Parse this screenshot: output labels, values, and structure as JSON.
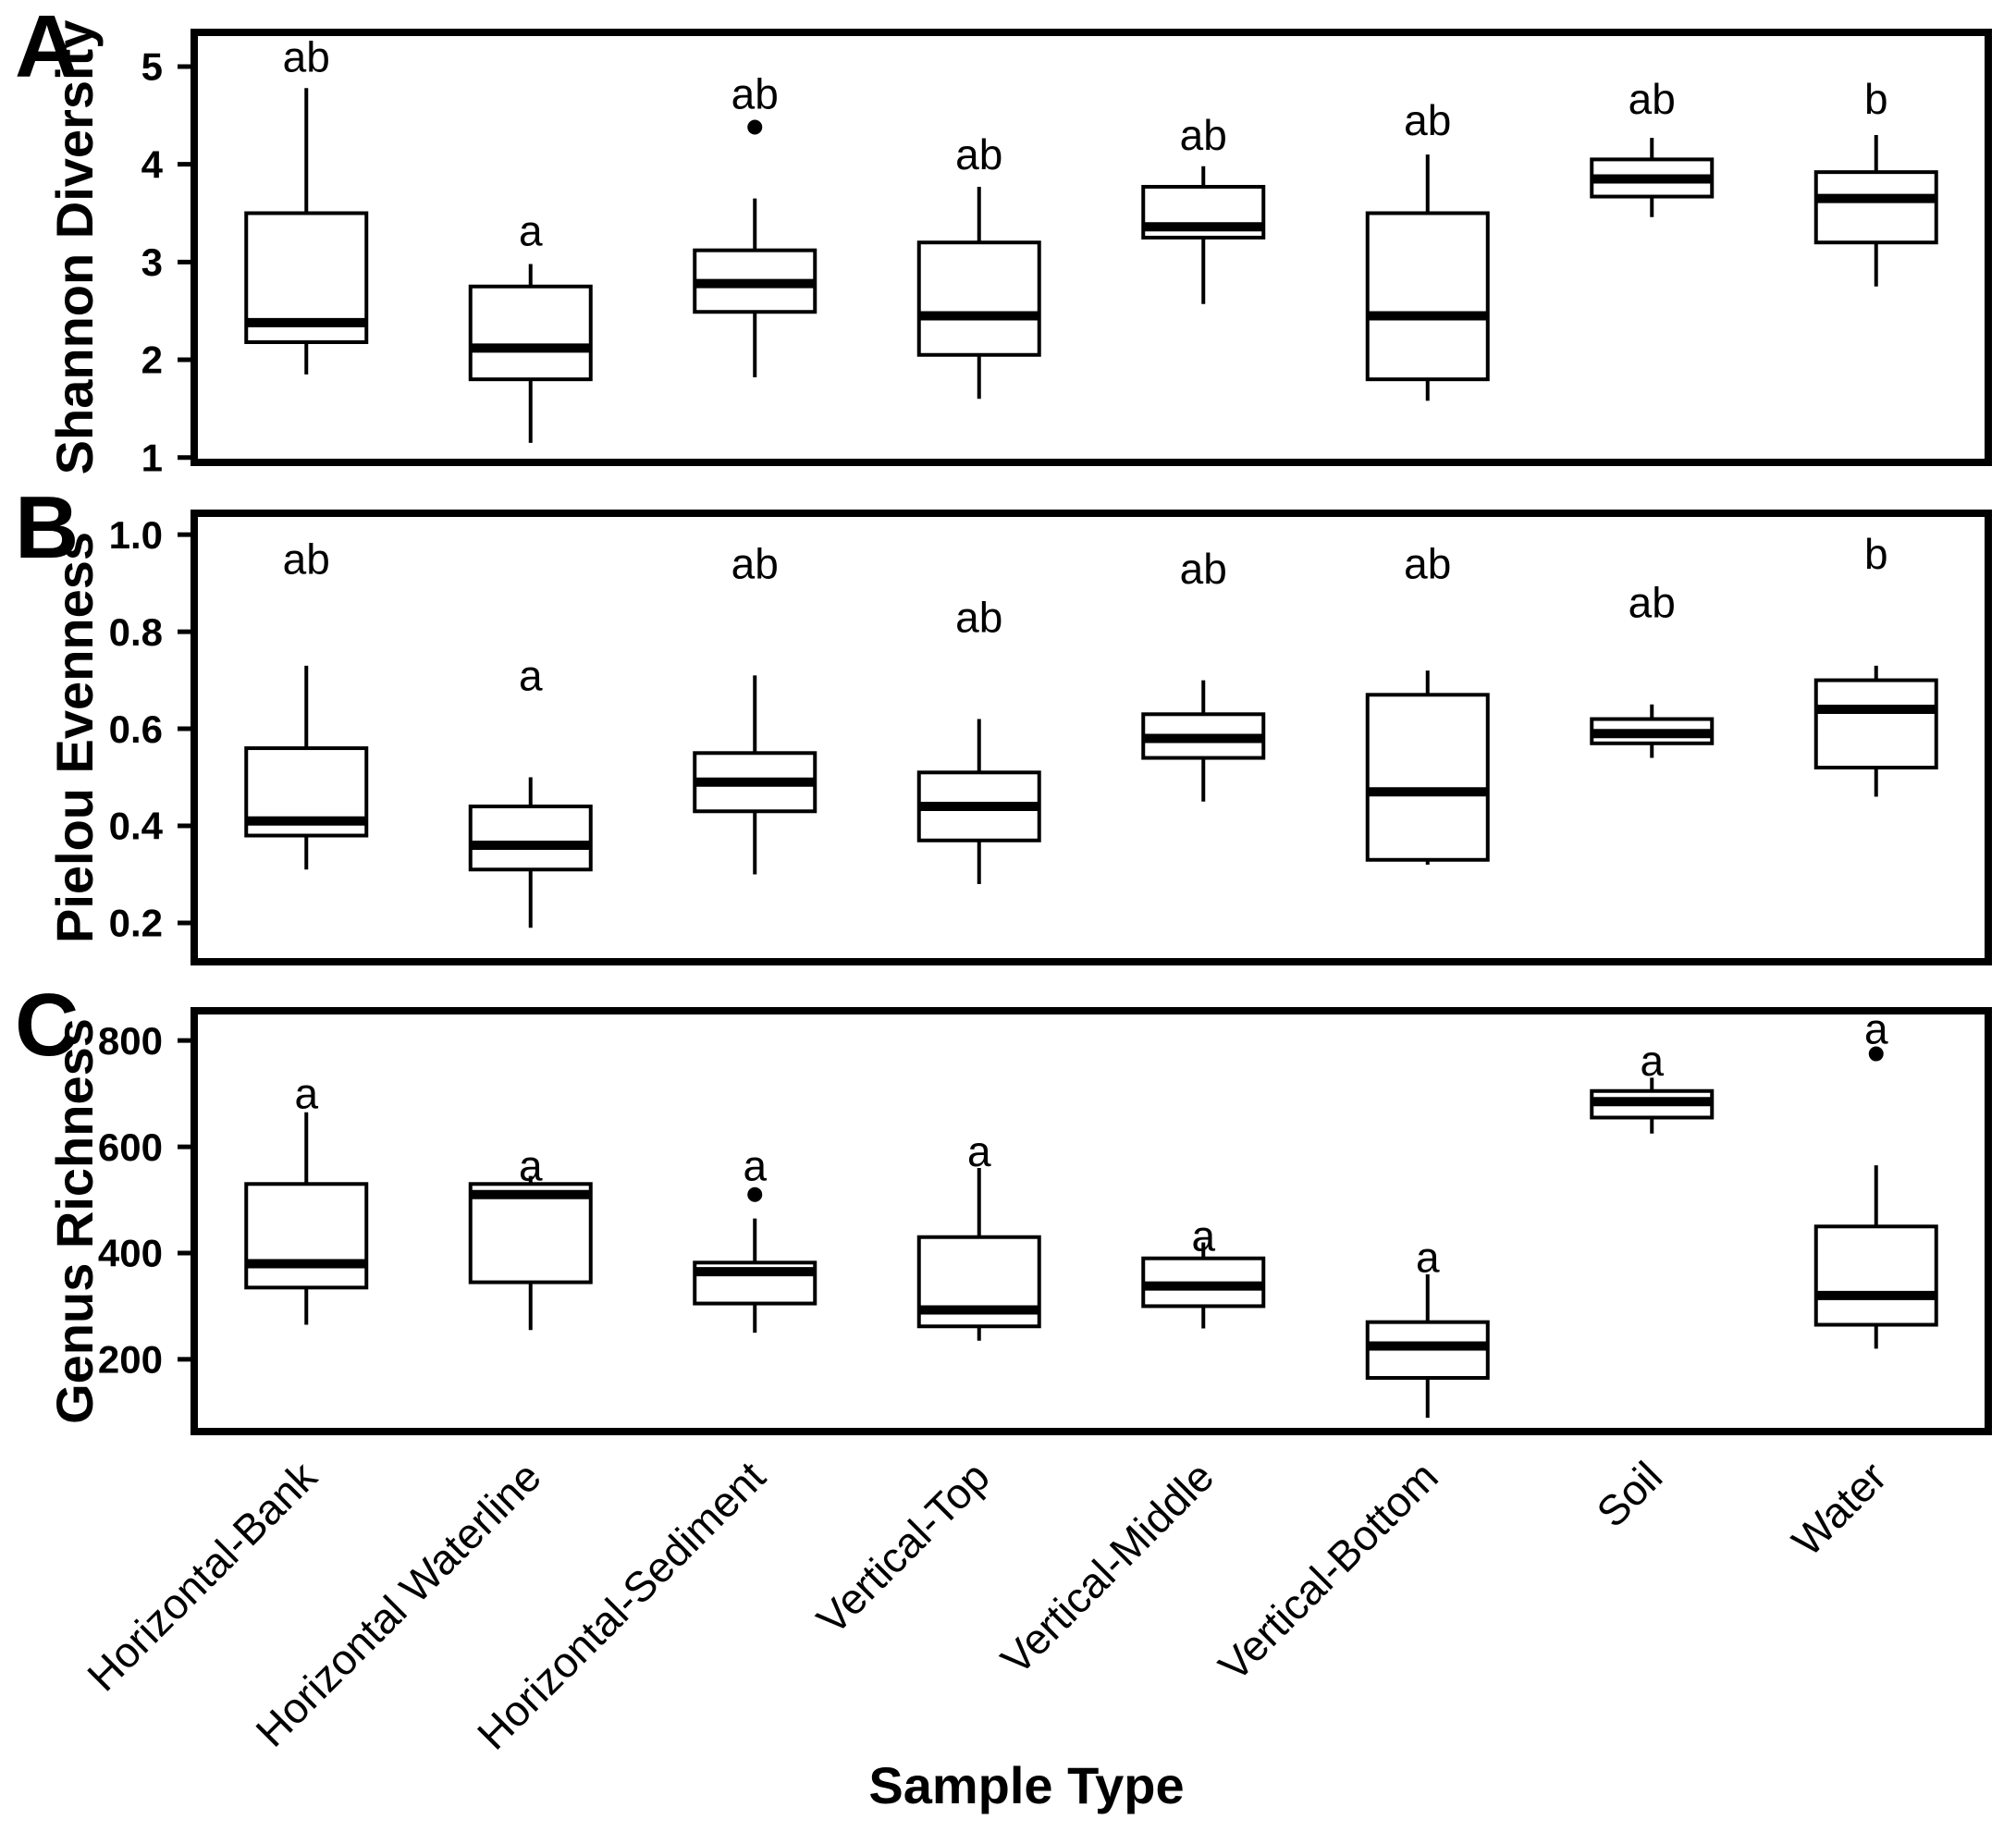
{
  "figure": {
    "xlabel": "Sample Type",
    "background_color": "#ffffff",
    "ink_color": "#000000"
  },
  "categories": [
    "Horizontal-Bank",
    "Horizontal Waterline",
    "Horizontal-Sediment",
    "Vertical-Top",
    "Vertical-Middle",
    "Vertical-Bottom",
    "Soil",
    "Water"
  ],
  "chart_data": [
    {
      "type": "boxplot",
      "panel_label": "A",
      "ylabel": "Shannon Diversity",
      "xlabel": "",
      "ylim": [
        0.95,
        5.35
      ],
      "yticks": [
        5,
        4,
        3,
        2,
        1
      ],
      "ytick_labels": [
        "5",
        "4",
        "3",
        "2",
        "1"
      ],
      "grid": false,
      "legend": false,
      "categories": [
        "Horizontal-Bank",
        "Horizontal Waterline",
        "Horizontal-Sediment",
        "Vertical-Top",
        "Vertical-Middle",
        "Vertical-Bottom",
        "Soil",
        "Water"
      ],
      "series": [
        {
          "category": "Horizontal-Bank",
          "whisker_low": 1.85,
          "q1": 2.18,
          "median": 2.38,
          "q3": 3.5,
          "whisker_high": 4.78,
          "outliers": [],
          "sig_letter": "ab",
          "sig_letter_y": 5.1
        },
        {
          "category": "Horizontal Waterline",
          "whisker_low": 1.15,
          "q1": 1.8,
          "median": 2.12,
          "q3": 2.75,
          "whisker_high": 2.98,
          "outliers": [],
          "sig_letter": "a",
          "sig_letter_y": 3.32
        },
        {
          "category": "Horizontal-Sediment",
          "whisker_low": 1.82,
          "q1": 2.49,
          "median": 2.78,
          "q3": 3.12,
          "whisker_high": 3.65,
          "outliers": [
            4.38
          ],
          "sig_letter": "ab",
          "sig_letter_y": 4.72
        },
        {
          "category": "Vertical-Top",
          "whisker_low": 1.6,
          "q1": 2.05,
          "median": 2.45,
          "q3": 3.2,
          "whisker_high": 3.77,
          "outliers": [],
          "sig_letter": "ab",
          "sig_letter_y": 4.1
        },
        {
          "category": "Vertical-Middle",
          "whisker_low": 2.57,
          "q1": 3.25,
          "median": 3.36,
          "q3": 3.77,
          "whisker_high": 3.98,
          "outliers": [],
          "sig_letter": "ab",
          "sig_letter_y": 4.3
        },
        {
          "category": "Vertical-Bottom",
          "whisker_low": 1.58,
          "q1": 1.8,
          "median": 2.45,
          "q3": 3.5,
          "whisker_high": 4.1,
          "outliers": [],
          "sig_letter": "ab",
          "sig_letter_y": 4.45
        },
        {
          "category": "Soil",
          "whisker_low": 3.46,
          "q1": 3.67,
          "median": 3.85,
          "q3": 4.05,
          "whisker_high": 4.27,
          "outliers": [],
          "sig_letter": "ab",
          "sig_letter_y": 4.67
        },
        {
          "category": "Water",
          "whisker_low": 2.75,
          "q1": 3.2,
          "median": 3.65,
          "q3": 3.92,
          "whisker_high": 4.3,
          "outliers": [],
          "sig_letter": "b",
          "sig_letter_y": 4.67
        }
      ]
    },
    {
      "type": "boxplot",
      "panel_label": "B",
      "ylabel": "Pielou Evenness",
      "xlabel": "",
      "ylim": [
        0.12,
        1.044
      ],
      "yticks": [
        1.0,
        0.8,
        0.6,
        0.4,
        0.2
      ],
      "ytick_labels": [
        "1.0",
        "0.8",
        "0.6",
        "0.4",
        "0.2"
      ],
      "grid": false,
      "legend": false,
      "categories": [
        "Horizontal-Bank",
        "Horizontal Waterline",
        "Horizontal-Sediment",
        "Vertical-Top",
        "Vertical-Middle",
        "Vertical-Bottom",
        "Soil",
        "Water"
      ],
      "series": [
        {
          "category": "Horizontal-Bank",
          "whisker_low": 0.31,
          "q1": 0.38,
          "median": 0.41,
          "q3": 0.56,
          "whisker_high": 0.73,
          "outliers": [],
          "sig_letter": "ab",
          "sig_letter_y": 0.95
        },
        {
          "category": "Horizontal Waterline",
          "whisker_low": 0.19,
          "q1": 0.31,
          "median": 0.36,
          "q3": 0.44,
          "whisker_high": 0.5,
          "outliers": [],
          "sig_letter": "a",
          "sig_letter_y": 0.71
        },
        {
          "category": "Horizontal-Sediment",
          "whisker_low": 0.3,
          "q1": 0.43,
          "median": 0.49,
          "q3": 0.55,
          "whisker_high": 0.71,
          "outliers": [],
          "sig_letter": "ab",
          "sig_letter_y": 0.94
        },
        {
          "category": "Vertical-Top",
          "whisker_low": 0.28,
          "q1": 0.37,
          "median": 0.44,
          "q3": 0.51,
          "whisker_high": 0.62,
          "outliers": [],
          "sig_letter": "ab",
          "sig_letter_y": 0.83
        },
        {
          "category": "Vertical-Middle",
          "whisker_low": 0.45,
          "q1": 0.54,
          "median": 0.58,
          "q3": 0.63,
          "whisker_high": 0.7,
          "outliers": [],
          "sig_letter": "ab",
          "sig_letter_y": 0.93
        },
        {
          "category": "Vertical-Bottom",
          "whisker_low": 0.32,
          "q1": 0.33,
          "median": 0.47,
          "q3": 0.67,
          "whisker_high": 0.72,
          "outliers": [],
          "sig_letter": "ab",
          "sig_letter_y": 0.94
        },
        {
          "category": "Soil",
          "whisker_low": 0.54,
          "q1": 0.57,
          "median": 0.59,
          "q3": 0.62,
          "whisker_high": 0.65,
          "outliers": [],
          "sig_letter": "ab",
          "sig_letter_y": 0.86
        },
        {
          "category": "Water",
          "whisker_low": 0.46,
          "q1": 0.52,
          "median": 0.64,
          "q3": 0.7,
          "whisker_high": 0.73,
          "outliers": [],
          "sig_letter": "b",
          "sig_letter_y": 0.96
        }
      ]
    },
    {
      "type": "boxplot",
      "panel_label": "C",
      "ylabel": "Genus Richness",
      "xlabel": "Sample Type",
      "ylim": [
        64,
        856
      ],
      "yticks": [
        800,
        600,
        400,
        200
      ],
      "ytick_labels": [
        "800",
        "600",
        "400",
        "200"
      ],
      "grid": false,
      "legend": false,
      "categories": [
        "Horizontal-Bank",
        "Horizontal Waterline",
        "Horizontal-Sediment",
        "Vertical-Top",
        "Vertical-Middle",
        "Vertical-Bottom",
        "Soil",
        "Water"
      ],
      "series": [
        {
          "category": "Horizontal-Bank",
          "whisker_low": 265,
          "q1": 335,
          "median": 380,
          "q3": 530,
          "whisker_high": 665,
          "outliers": [],
          "sig_letter": "a",
          "sig_letter_y": 700
        },
        {
          "category": "Horizontal Waterline",
          "whisker_low": 255,
          "q1": 345,
          "median": 510,
          "q3": 530,
          "whisker_high": 545,
          "outliers": [],
          "sig_letter": "a",
          "sig_letter_y": 565
        },
        {
          "category": "Horizontal-Sediment",
          "whisker_low": 250,
          "q1": 305,
          "median": 365,
          "q3": 382,
          "whisker_high": 465,
          "outliers": [
            510
          ],
          "sig_letter": "a",
          "sig_letter_y": 565
        },
        {
          "category": "Vertical-Top",
          "whisker_low": 235,
          "q1": 262,
          "median": 293,
          "q3": 430,
          "whisker_high": 560,
          "outliers": [],
          "sig_letter": "a",
          "sig_letter_y": 592
        },
        {
          "category": "Vertical-Middle",
          "whisker_low": 258,
          "q1": 300,
          "median": 338,
          "q3": 390,
          "whisker_high": 420,
          "outliers": [],
          "sig_letter": "a",
          "sig_letter_y": 432
        },
        {
          "category": "Vertical-Bottom",
          "whisker_low": 90,
          "q1": 165,
          "median": 225,
          "q3": 270,
          "whisker_high": 360,
          "outliers": [],
          "sig_letter": "a",
          "sig_letter_y": 392
        },
        {
          "category": "Soil",
          "whisker_low": 625,
          "q1": 655,
          "median": 685,
          "q3": 705,
          "whisker_high": 730,
          "outliers": [],
          "sig_letter": "a",
          "sig_letter_y": 762
        },
        {
          "category": "Water",
          "whisker_low": 220,
          "q1": 265,
          "median": 320,
          "q3": 450,
          "whisker_high": 565,
          "outliers": [
            775
          ],
          "sig_letter": "a",
          "sig_letter_y": 822
        }
      ]
    }
  ]
}
